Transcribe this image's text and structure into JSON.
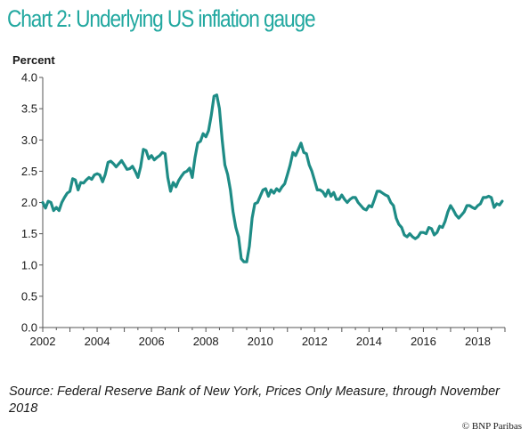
{
  "header": {
    "title": "Chart 2: Underlying US inflation gauge"
  },
  "footer": {
    "source": "Source: Federal Reserve Bank of New York, Prices Only Measure, through November 2018",
    "credit": "© BNP Paribas"
  },
  "chart_data": {
    "type": "line",
    "title": "Chart 2: Underlying US inflation gauge",
    "xlabel": "",
    "ylabel": "Percent",
    "xlim": [
      2002.0,
      2019.0
    ],
    "ylim": [
      0.0,
      4.0
    ],
    "y_ticks": [
      "0.0",
      "0.5",
      "1.0",
      "1.5",
      "2.0",
      "2.5",
      "3.0",
      "3.5",
      "4.0"
    ],
    "x_ticks": [
      "2002",
      "2004",
      "2006",
      "2008",
      "2010",
      "2012",
      "2014",
      "2016",
      "2018"
    ],
    "grid": false,
    "legend": "none",
    "line_color": "#1e8c86",
    "series": [
      {
        "points": [
          [
            2002.0,
            2.0
          ],
          [
            2002.1,
            1.91
          ],
          [
            2002.2,
            2.02
          ],
          [
            2002.3,
            2.0
          ],
          [
            2002.4,
            1.87
          ],
          [
            2002.5,
            1.92
          ],
          [
            2002.6,
            1.87
          ],
          [
            2002.7,
            2.0
          ],
          [
            2002.8,
            2.08
          ],
          [
            2002.9,
            2.15
          ],
          [
            2003.0,
            2.18
          ],
          [
            2003.1,
            2.38
          ],
          [
            2003.2,
            2.36
          ],
          [
            2003.3,
            2.2
          ],
          [
            2003.4,
            2.32
          ],
          [
            2003.5,
            2.31
          ],
          [
            2003.6,
            2.36
          ],
          [
            2003.7,
            2.4
          ],
          [
            2003.8,
            2.37
          ],
          [
            2003.9,
            2.44
          ],
          [
            2004.0,
            2.46
          ],
          [
            2004.1,
            2.44
          ],
          [
            2004.2,
            2.33
          ],
          [
            2004.3,
            2.45
          ],
          [
            2004.4,
            2.64
          ],
          [
            2004.5,
            2.66
          ],
          [
            2004.6,
            2.62
          ],
          [
            2004.7,
            2.57
          ],
          [
            2004.8,
            2.62
          ],
          [
            2004.9,
            2.67
          ],
          [
            2005.0,
            2.6
          ],
          [
            2005.1,
            2.53
          ],
          [
            2005.2,
            2.54
          ],
          [
            2005.3,
            2.58
          ],
          [
            2005.4,
            2.5
          ],
          [
            2005.5,
            2.4
          ],
          [
            2005.6,
            2.57
          ],
          [
            2005.7,
            2.85
          ],
          [
            2005.8,
            2.83
          ],
          [
            2005.9,
            2.7
          ],
          [
            2006.0,
            2.75
          ],
          [
            2006.1,
            2.68
          ],
          [
            2006.2,
            2.72
          ],
          [
            2006.3,
            2.75
          ],
          [
            2006.4,
            2.8
          ],
          [
            2006.5,
            2.78
          ],
          [
            2006.6,
            2.4
          ],
          [
            2006.7,
            2.18
          ],
          [
            2006.8,
            2.32
          ],
          [
            2006.9,
            2.25
          ],
          [
            2007.0,
            2.35
          ],
          [
            2007.1,
            2.42
          ],
          [
            2007.2,
            2.48
          ],
          [
            2007.3,
            2.5
          ],
          [
            2007.4,
            2.55
          ],
          [
            2007.5,
            2.4
          ],
          [
            2007.6,
            2.72
          ],
          [
            2007.7,
            2.95
          ],
          [
            2007.8,
            2.98
          ],
          [
            2007.9,
            3.1
          ],
          [
            2008.0,
            3.05
          ],
          [
            2008.1,
            3.15
          ],
          [
            2008.2,
            3.4
          ],
          [
            2008.3,
            3.7
          ],
          [
            2008.4,
            3.72
          ],
          [
            2008.5,
            3.5
          ],
          [
            2008.6,
            3.0
          ],
          [
            2008.7,
            2.6
          ],
          [
            2008.8,
            2.45
          ],
          [
            2008.9,
            2.2
          ],
          [
            2009.0,
            1.85
          ],
          [
            2009.1,
            1.6
          ],
          [
            2009.2,
            1.45
          ],
          [
            2009.3,
            1.1
          ],
          [
            2009.4,
            1.05
          ],
          [
            2009.5,
            1.05
          ],
          [
            2009.6,
            1.3
          ],
          [
            2009.7,
            1.75
          ],
          [
            2009.8,
            1.98
          ],
          [
            2009.9,
            2.0
          ],
          [
            2010.0,
            2.1
          ],
          [
            2010.1,
            2.2
          ],
          [
            2010.2,
            2.22
          ],
          [
            2010.3,
            2.1
          ],
          [
            2010.4,
            2.2
          ],
          [
            2010.5,
            2.15
          ],
          [
            2010.6,
            2.22
          ],
          [
            2010.7,
            2.18
          ],
          [
            2010.8,
            2.25
          ],
          [
            2010.9,
            2.3
          ],
          [
            2011.0,
            2.45
          ],
          [
            2011.1,
            2.6
          ],
          [
            2011.2,
            2.8
          ],
          [
            2011.3,
            2.75
          ],
          [
            2011.4,
            2.85
          ],
          [
            2011.5,
            2.95
          ],
          [
            2011.6,
            2.8
          ],
          [
            2011.7,
            2.78
          ],
          [
            2011.8,
            2.6
          ],
          [
            2011.9,
            2.5
          ],
          [
            2012.0,
            2.35
          ],
          [
            2012.1,
            2.2
          ],
          [
            2012.2,
            2.2
          ],
          [
            2012.3,
            2.17
          ],
          [
            2012.4,
            2.1
          ],
          [
            2012.5,
            2.2
          ],
          [
            2012.6,
            2.1
          ],
          [
            2012.7,
            2.16
          ],
          [
            2012.8,
            2.05
          ],
          [
            2012.9,
            2.05
          ],
          [
            2013.0,
            2.12
          ],
          [
            2013.1,
            2.05
          ],
          [
            2013.2,
            2.0
          ],
          [
            2013.3,
            2.05
          ],
          [
            2013.4,
            2.08
          ],
          [
            2013.5,
            2.08
          ],
          [
            2013.6,
            2.0
          ],
          [
            2013.7,
            1.95
          ],
          [
            2013.8,
            1.9
          ],
          [
            2013.9,
            1.88
          ],
          [
            2014.0,
            1.95
          ],
          [
            2014.1,
            1.93
          ],
          [
            2014.2,
            2.05
          ],
          [
            2014.3,
            2.18
          ],
          [
            2014.4,
            2.18
          ],
          [
            2014.5,
            2.15
          ],
          [
            2014.6,
            2.12
          ],
          [
            2014.7,
            2.1
          ],
          [
            2014.8,
            2.0
          ],
          [
            2014.9,
            1.95
          ],
          [
            2015.0,
            1.75
          ],
          [
            2015.1,
            1.65
          ],
          [
            2015.2,
            1.6
          ],
          [
            2015.3,
            1.48
          ],
          [
            2015.4,
            1.45
          ],
          [
            2015.5,
            1.5
          ],
          [
            2015.6,
            1.45
          ],
          [
            2015.7,
            1.42
          ],
          [
            2015.8,
            1.45
          ],
          [
            2015.9,
            1.52
          ],
          [
            2016.0,
            1.52
          ],
          [
            2016.1,
            1.5
          ],
          [
            2016.2,
            1.6
          ],
          [
            2016.3,
            1.58
          ],
          [
            2016.4,
            1.48
          ],
          [
            2016.5,
            1.52
          ],
          [
            2016.6,
            1.62
          ],
          [
            2016.7,
            1.6
          ],
          [
            2016.8,
            1.7
          ],
          [
            2016.9,
            1.85
          ],
          [
            2017.0,
            1.95
          ],
          [
            2017.1,
            1.88
          ],
          [
            2017.2,
            1.8
          ],
          [
            2017.3,
            1.75
          ],
          [
            2017.4,
            1.8
          ],
          [
            2017.5,
            1.85
          ],
          [
            2017.6,
            1.95
          ],
          [
            2017.7,
            1.95
          ],
          [
            2017.8,
            1.92
          ],
          [
            2017.9,
            1.9
          ],
          [
            2018.0,
            1.95
          ],
          [
            2018.1,
            1.98
          ],
          [
            2018.2,
            2.08
          ],
          [
            2018.3,
            2.08
          ],
          [
            2018.4,
            2.1
          ],
          [
            2018.5,
            2.08
          ],
          [
            2018.6,
            1.92
          ],
          [
            2018.7,
            1.98
          ],
          [
            2018.8,
            1.96
          ],
          [
            2018.9,
            2.02
          ]
        ]
      }
    ]
  }
}
